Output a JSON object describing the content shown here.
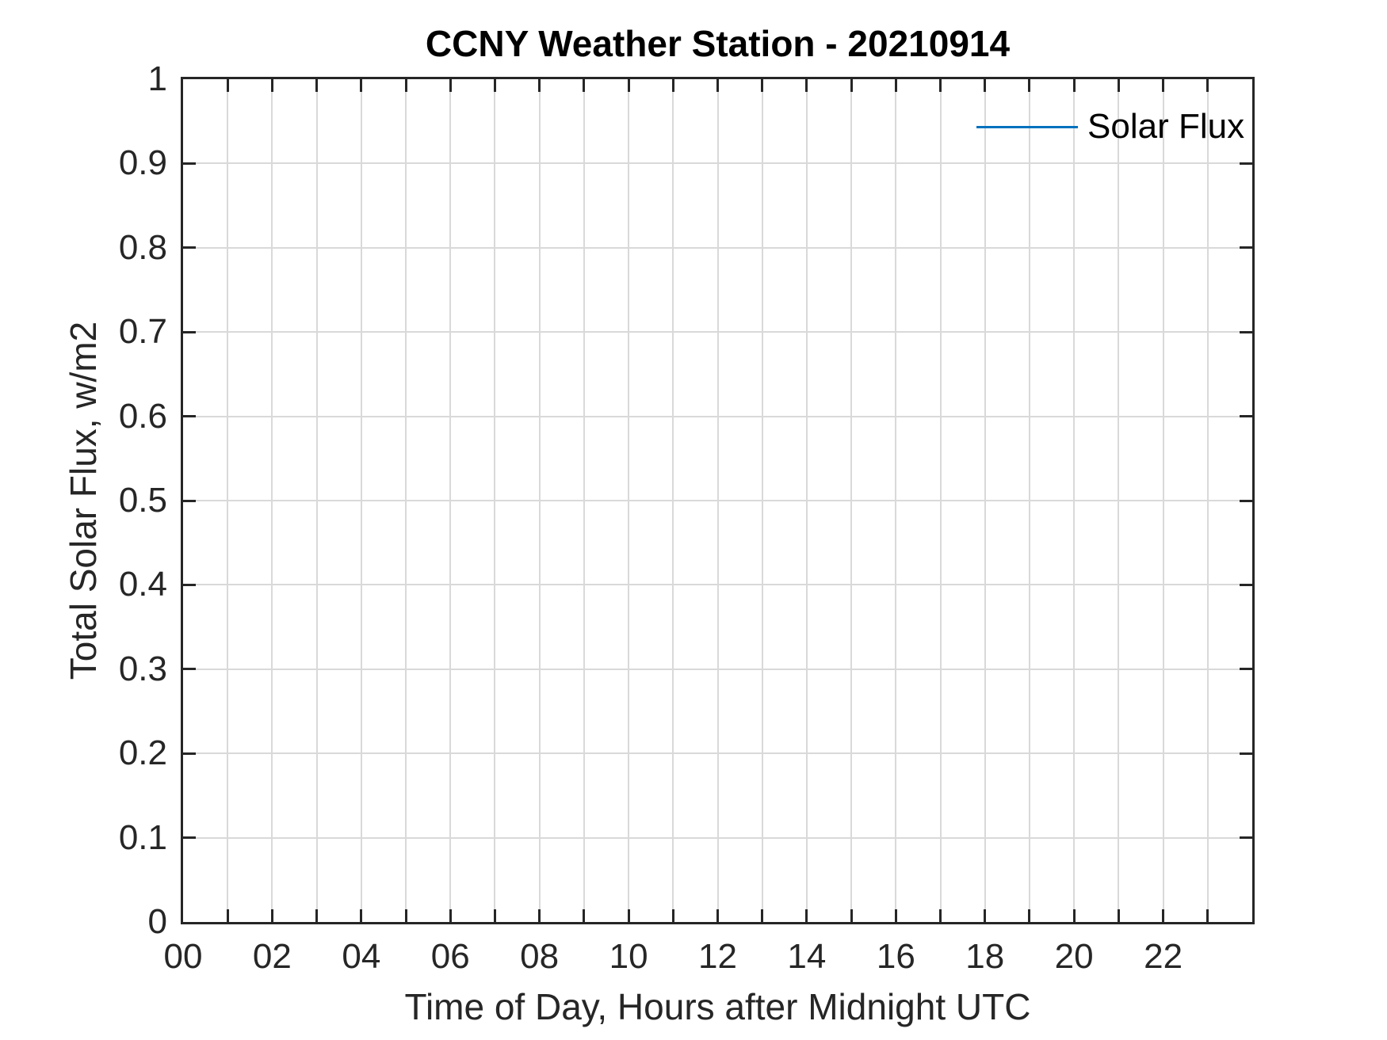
{
  "chart_data": {
    "type": "line",
    "title": "CCNY Weather Station - 20210914",
    "xlabel": "Time of Day, Hours after Midnight UTC",
    "ylabel": "Total Solar Flux, w/m2",
    "xlim": [
      0,
      24
    ],
    "ylim": [
      0,
      1
    ],
    "grid": true,
    "legend_position": "northeast",
    "legend_box": false,
    "series": [
      {
        "name": "Solar Flux",
        "color": "#0072BD",
        "x": [],
        "y": []
      }
    ],
    "xtick_values": [
      0,
      1,
      2,
      3,
      4,
      5,
      6,
      7,
      8,
      9,
      10,
      11,
      12,
      13,
      14,
      15,
      16,
      17,
      18,
      19,
      20,
      21,
      22,
      23,
      24
    ],
    "xtick_labels": [
      "00",
      "",
      "02",
      "",
      "04",
      "",
      "06",
      "",
      "08",
      "",
      "10",
      "",
      "12",
      "",
      "14",
      "",
      "16",
      "",
      "18",
      "",
      "20",
      "",
      "22",
      "",
      ""
    ],
    "ytick_values": [
      0,
      0.1,
      0.2,
      0.3,
      0.4,
      0.5,
      0.6,
      0.7,
      0.8,
      0.9,
      1
    ],
    "ytick_labels": [
      "0",
      "0.1",
      "0.2",
      "0.3",
      "0.4",
      "0.5",
      "0.6",
      "0.7",
      "0.8",
      "0.9",
      "1"
    ],
    "colors": {
      "axis": "#262626",
      "grid": "#d9d9d9",
      "tick_label": "#262626",
      "title": "#000000"
    }
  }
}
